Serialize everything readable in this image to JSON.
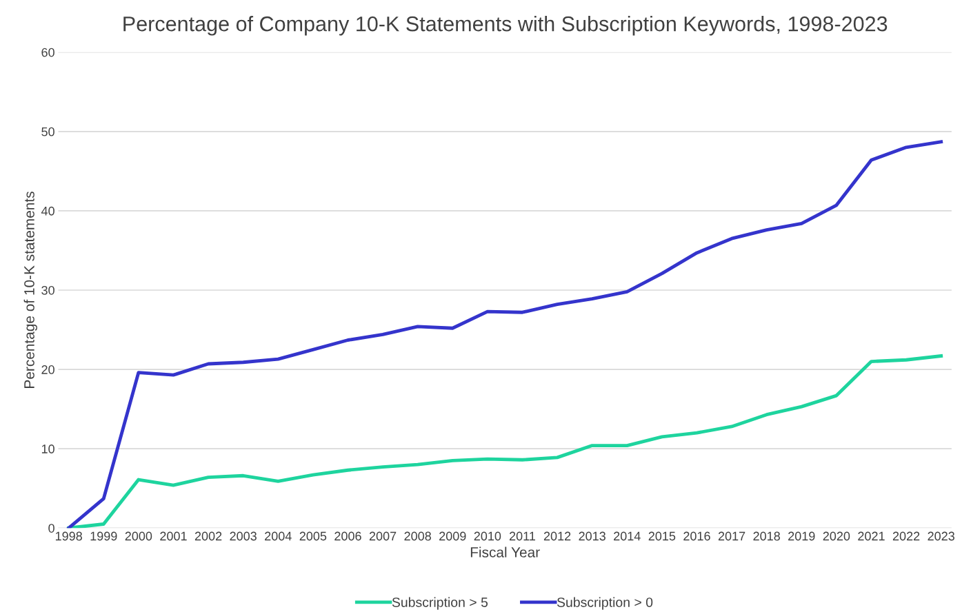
{
  "chart_data": {
    "type": "line",
    "title": "Percentage of Company 10-K Statements with Subscription Keywords, 1998-2023",
    "xlabel": "Fiscal Year",
    "ylabel": "Percentage of 10-K statements",
    "categories": [
      "1998",
      "1999",
      "2000",
      "2001",
      "2002",
      "2003",
      "2004",
      "2005",
      "2006",
      "2007",
      "2008",
      "2009",
      "2010",
      "2011",
      "2012",
      "2013",
      "2014",
      "2015",
      "2016",
      "2017",
      "2018",
      "2019",
      "2020",
      "2021",
      "2022",
      "2023"
    ],
    "series": [
      {
        "name": "Subscription > 5",
        "color": "#1ed49e",
        "values": [
          0,
          0.5,
          6.1,
          5.4,
          6.4,
          6.6,
          5.9,
          6.7,
          7.3,
          7.7,
          8.0,
          8.5,
          8.7,
          8.6,
          8.9,
          10.4,
          10.4,
          11.5,
          12.0,
          12.8,
          14.3,
          15.3,
          16.7,
          21.0,
          21.2,
          21.7
        ]
      },
      {
        "name": "Subscription > 0",
        "color": "#3434cc",
        "values": [
          0,
          3.7,
          19.6,
          19.3,
          20.7,
          20.9,
          21.3,
          22.5,
          23.7,
          24.4,
          25.4,
          25.2,
          27.3,
          27.2,
          28.2,
          28.9,
          29.8,
          32.1,
          34.7,
          36.5,
          37.6,
          38.4,
          40.7,
          46.4,
          48.0,
          48.7
        ]
      }
    ],
    "ylim": [
      0,
      60
    ],
    "yticks": [
      0,
      10,
      20,
      30,
      40,
      50,
      60
    ],
    "grid": "y",
    "legend": "bottom",
    "marker": "none",
    "line_style": "solid"
  }
}
